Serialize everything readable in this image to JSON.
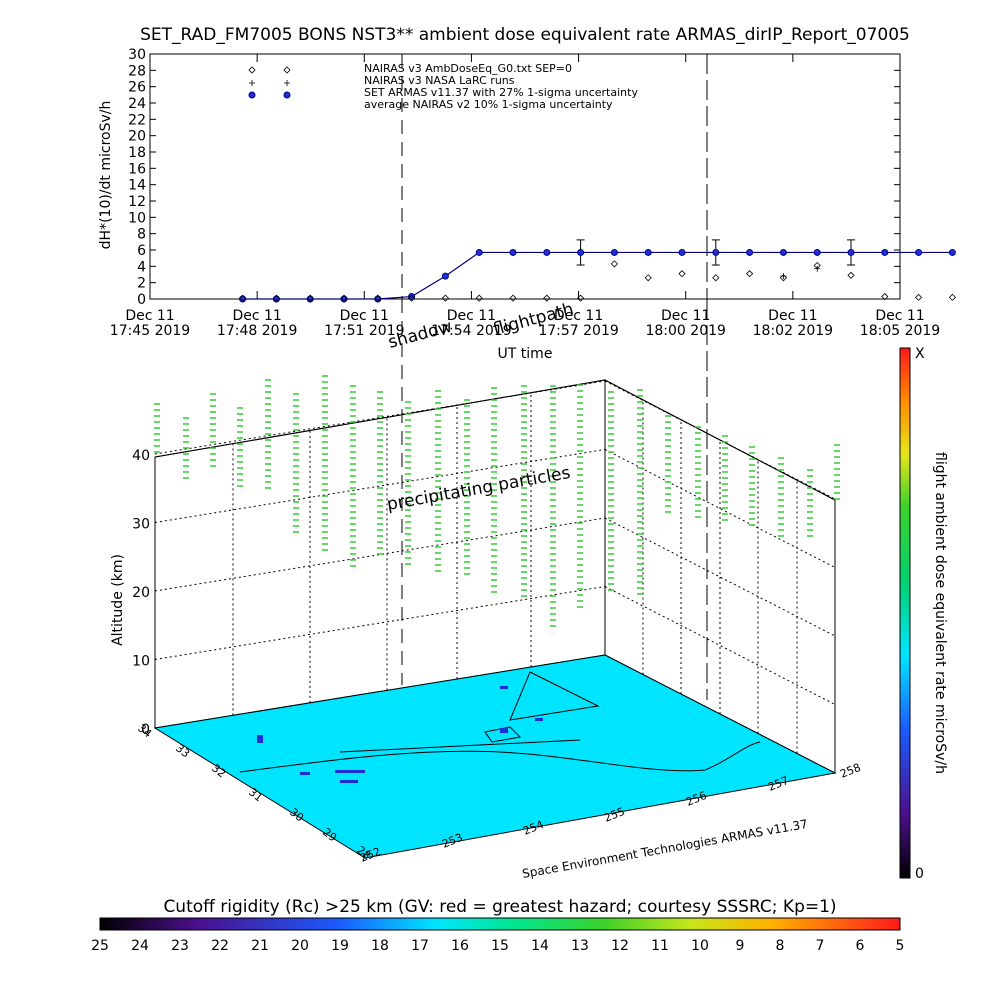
{
  "title": "SET_RAD_FM7005  BONS NST3** ambient dose equivalent rate ARMAS_dirIP_Report_07005",
  "colors": {
    "surface": "#00e5ff",
    "marker": "#1f2fd8",
    "line": "#000080",
    "profile": "#33cc33"
  },
  "chart_data": [
    {
      "type": "line",
      "ylabel": "dH*(10)/dt microSv/h",
      "xlabel": "UT time",
      "ylim": [
        0,
        30
      ],
      "yticks": [
        "0",
        "2",
        "4",
        "6",
        "8",
        "10",
        "12",
        "14",
        "16",
        "18",
        "20",
        "22",
        "24",
        "26",
        "28",
        "30"
      ],
      "xtick_labels": [
        {
          "l1": "Dec 11",
          "l2": "17:45 2019"
        },
        {
          "l1": "Dec 11",
          "l2": "17:48 2019"
        },
        {
          "l1": "Dec 11",
          "l2": "17:51 2019"
        },
        {
          "l1": "Dec 11",
          "l2": "17:54 2019"
        },
        {
          "l1": "Dec 11",
          "l2": "17:57 2019"
        },
        {
          "l1": "Dec 11",
          "l2": "18:00 2019"
        },
        {
          "l1": "Dec 11",
          "l2": "18:02 2019"
        },
        {
          "l1": "Dec 11",
          "l2": "18:05 2019"
        }
      ],
      "x_minutes": [
        0,
        3,
        6,
        9,
        12,
        15,
        18,
        21,
        24,
        27,
        30,
        33,
        36,
        39,
        42,
        45,
        48,
        51,
        54,
        57,
        60,
        63,
        66,
        69
      ],
      "series": [
        {
          "name": "NAIRAS v3 AmbDoseEq_G0.txt SEP=0",
          "marker": "diamond",
          "values": [
            27.6,
            27.6,
            0.1,
            0.1,
            0.1,
            0.1,
            0.1,
            0.1,
            0.1,
            0.1,
            0.1,
            0.1,
            0.1,
            4.3,
            2.6,
            3.1,
            2.6,
            3.1,
            2.6,
            4.1,
            2.9,
            0.3,
            0.2,
            0.2
          ]
        },
        {
          "name": "NAIRAS v3 NASA LaRC runs",
          "marker": "plus",
          "values": [
            26.2,
            26.2,
            null,
            null,
            null,
            null,
            null,
            null,
            null,
            null,
            2.8,
            3.7,
            null,
            null,
            null,
            null,
            null,
            null,
            null,
            null,
            null,
            null,
            null,
            null
          ]
        },
        {
          "name": "SET ARMAS v11.37 with 27% 1-sigma uncertainty",
          "marker": "circle",
          "values": [
            24.4,
            24.4,
            0.0,
            0.0,
            0.0,
            0.0,
            0.0,
            0.3,
            2.8,
            5.7,
            5.7,
            5.7,
            5.7,
            5.7,
            5.7,
            5.7,
            5.7,
            5.7,
            5.7,
            5.7,
            5.7,
            5.7,
            5.7,
            5.7
          ]
        },
        {
          "name": "average NAIRAS v2 10% 1-sigma uncertainty",
          "marker": "none",
          "values": []
        }
      ],
      "reference_lines": [
        "17:53",
        "18:01"
      ]
    },
    {
      "type": "scatter",
      "zlabel": "Altitude (km)",
      "zticks": [
        "0",
        "10",
        "20",
        "30",
        "40"
      ],
      "lat_ticks": [
        "28",
        "29",
        "30",
        "31",
        "32",
        "33",
        "34"
      ],
      "lon_ticks": [
        "252",
        "253",
        "254",
        "255",
        "256",
        "257",
        "258"
      ],
      "colorbar": {
        "title": "flight ambient dose equivalent rate microSv/h",
        "min_label": "0",
        "max_label": "X"
      }
    }
  ],
  "annotations": {
    "shadow": "shadow",
    "flightpath": "flightpath",
    "precip": "precipitating particles",
    "credit": "Space Environment Technologies ARMAS v11.37"
  },
  "rc_bar": {
    "title": "Cutoff rigidity (Rc) >25 km (GV: red = greatest hazard; courtesy SSSRC; Kp=1)",
    "labels": [
      "25",
      "24",
      "23",
      "22",
      "21",
      "20",
      "19",
      "18",
      "17",
      "16",
      "15",
      "14",
      "13",
      "12",
      "11",
      "10",
      "9",
      "8",
      "7",
      "6",
      "5"
    ]
  }
}
